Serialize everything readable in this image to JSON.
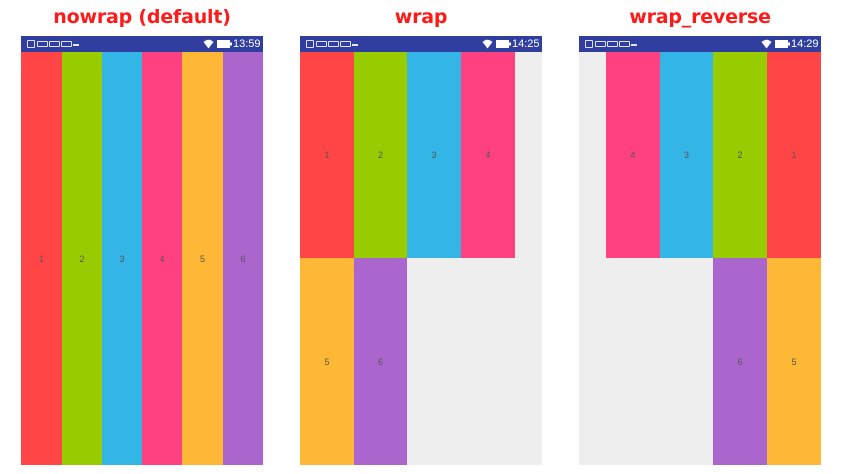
{
  "colors": {
    "red": "#ff4545",
    "green": "#99cc00",
    "blue": "#33b5e5",
    "pink": "#ff4081",
    "amber": "#ffb835",
    "purple": "#aa66cc",
    "statusbar": "#303f9f",
    "background": "#eeeeee",
    "title": "#ff1a1a"
  },
  "panels": [
    {
      "title": "nowrap (default)",
      "clock": "13:59",
      "items": [
        {
          "label": "1",
          "color": "red"
        },
        {
          "label": "2",
          "color": "green"
        },
        {
          "label": "3",
          "color": "blue"
        },
        {
          "label": "4",
          "color": "pink"
        },
        {
          "label": "5",
          "color": "amber"
        },
        {
          "label": "6",
          "color": "purple"
        }
      ]
    },
    {
      "title": "wrap",
      "clock": "14:25",
      "items": [
        {
          "label": "1",
          "color": "red"
        },
        {
          "label": "2",
          "color": "green"
        },
        {
          "label": "3",
          "color": "blue"
        },
        {
          "label": "4",
          "color": "pink"
        },
        {
          "label": "5",
          "color": "amber"
        },
        {
          "label": "6",
          "color": "purple"
        }
      ]
    },
    {
      "title": "wrap_reverse",
      "clock": "14:29",
      "items": [
        {
          "label": "4",
          "color": "pink"
        },
        {
          "label": "3",
          "color": "blue"
        },
        {
          "label": "2",
          "color": "green"
        },
        {
          "label": "1",
          "color": "red"
        },
        {
          "label": "6",
          "color": "purple"
        },
        {
          "label": "5",
          "color": "amber"
        }
      ]
    }
  ],
  "status_icons": [
    "lock-icon",
    "notification-icon",
    "notification-icon",
    "notification-icon",
    "more-icon",
    "wifi-icon",
    "battery-icon"
  ]
}
